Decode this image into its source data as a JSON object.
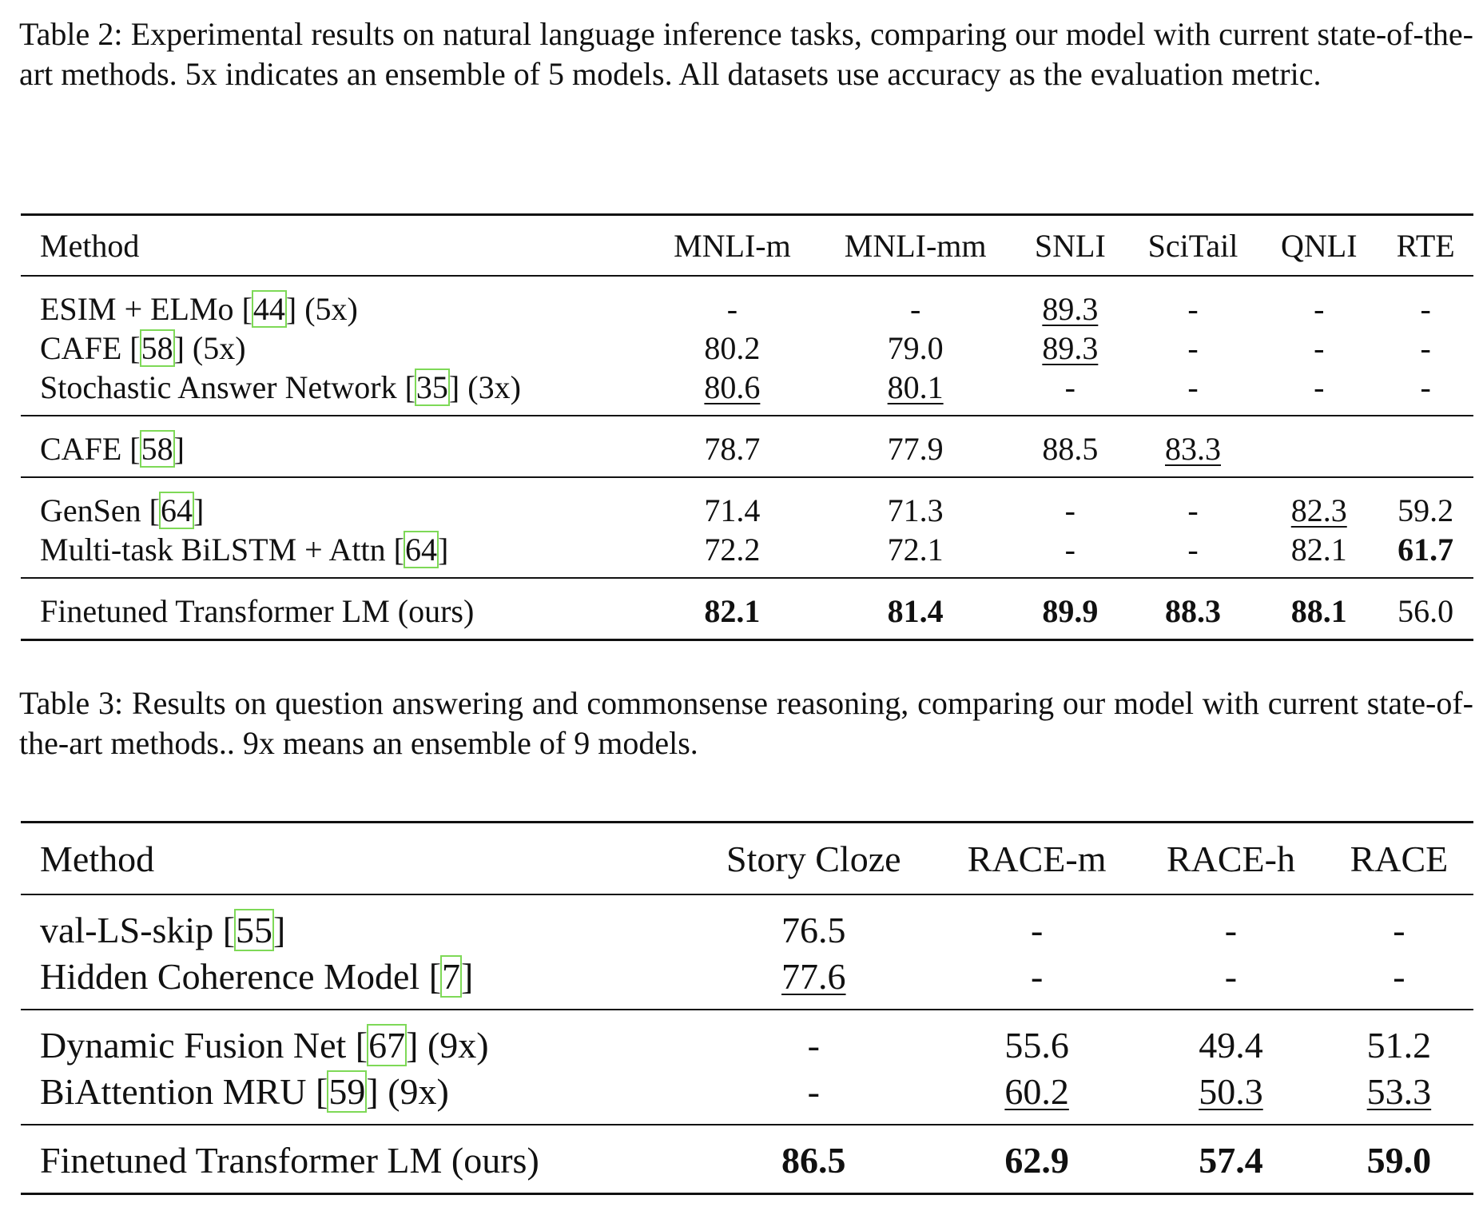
{
  "table2": {
    "caption": "Table 2: Experimental results on natural language inference tasks, comparing our model with current state-of-the-art methods. 5x indicates an ensemble of 5 models. All datasets use accuracy as the evaluation metric.",
    "headers": [
      "Method",
      "MNLI-m",
      "MNLI-mm",
      "SNLI",
      "SciTail",
      "QNLI",
      "RTE"
    ],
    "groups": [
      [
        {
          "name": "ESIM + ELMo",
          "cite": "44",
          "suffix": "(5x)",
          "cells": [
            {
              "v": "-"
            },
            {
              "v": "-"
            },
            {
              "v": "89.3",
              "u": true
            },
            {
              "v": "-"
            },
            {
              "v": "-"
            },
            {
              "v": "-"
            }
          ]
        },
        {
          "name": "CAFE",
          "cite": "58",
          "suffix": "(5x)",
          "cells": [
            {
              "v": "80.2"
            },
            {
              "v": "79.0"
            },
            {
              "v": "89.3",
              "u": true
            },
            {
              "v": "-"
            },
            {
              "v": "-"
            },
            {
              "v": "-"
            }
          ]
        },
        {
          "name": "Stochastic Answer Network",
          "cite": "35",
          "suffix": "(3x)",
          "cells": [
            {
              "v": "80.6",
              "u": true
            },
            {
              "v": "80.1",
              "u": true
            },
            {
              "v": "-"
            },
            {
              "v": "-"
            },
            {
              "v": "-"
            },
            {
              "v": "-"
            }
          ]
        }
      ],
      [
        {
          "name": "CAFE",
          "cite": "58",
          "suffix": "",
          "cells": [
            {
              "v": "78.7"
            },
            {
              "v": "77.9"
            },
            {
              "v": "88.5"
            },
            {
              "v": "83.3",
              "u": true
            },
            {
              "v": ""
            },
            {
              "v": ""
            }
          ]
        }
      ],
      [
        {
          "name": "GenSen",
          "cite": "64",
          "suffix": "",
          "cells": [
            {
              "v": "71.4"
            },
            {
              "v": "71.3"
            },
            {
              "v": "-"
            },
            {
              "v": "-"
            },
            {
              "v": "82.3",
              "u": true
            },
            {
              "v": "59.2"
            }
          ]
        },
        {
          "name": "Multi-task BiLSTM + Attn",
          "cite": "64",
          "suffix": "",
          "cells": [
            {
              "v": "72.2"
            },
            {
              "v": "72.1"
            },
            {
              "v": "-"
            },
            {
              "v": "-"
            },
            {
              "v": "82.1"
            },
            {
              "v": "61.7",
              "b": true
            }
          ]
        }
      ],
      [
        {
          "name": "Finetuned Transformer LM (ours)",
          "cite": "",
          "suffix": "",
          "cells": [
            {
              "v": "82.1",
              "b": true
            },
            {
              "v": "81.4",
              "b": true
            },
            {
              "v": "89.9",
              "b": true
            },
            {
              "v": "88.3",
              "b": true
            },
            {
              "v": "88.1",
              "b": true
            },
            {
              "v": "56.0"
            }
          ]
        }
      ]
    ]
  },
  "table3": {
    "caption": "Table 3: Results on question answering and commonsense reasoning, comparing our model with current state-of-the-art methods.. 9x means an ensemble of 9 models.",
    "headers": [
      "Method",
      "Story Cloze",
      "RACE-m",
      "RACE-h",
      "RACE"
    ],
    "groups": [
      [
        {
          "name": "val-LS-skip",
          "cite": "55",
          "suffix": "",
          "cells": [
            {
              "v": "76.5"
            },
            {
              "v": "-"
            },
            {
              "v": "-"
            },
            {
              "v": "-"
            }
          ]
        },
        {
          "name": "Hidden Coherence Model",
          "cite": "7",
          "suffix": "",
          "cells": [
            {
              "v": "77.6",
              "u": true
            },
            {
              "v": "-"
            },
            {
              "v": "-"
            },
            {
              "v": "-"
            }
          ]
        }
      ],
      [
        {
          "name": "Dynamic Fusion Net",
          "cite": "67",
          "suffix": "(9x)",
          "cells": [
            {
              "v": "-"
            },
            {
              "v": "55.6"
            },
            {
              "v": "49.4"
            },
            {
              "v": "51.2"
            }
          ]
        },
        {
          "name": "BiAttention MRU",
          "cite": "59",
          "suffix": "(9x)",
          "cells": [
            {
              "v": "-"
            },
            {
              "v": "60.2",
              "u": true
            },
            {
              "v": "50.3",
              "u": true
            },
            {
              "v": "53.3",
              "u": true
            }
          ]
        }
      ],
      [
        {
          "name": "Finetuned Transformer LM (ours)",
          "cite": "",
          "suffix": "",
          "cells": [
            {
              "v": "86.5",
              "b": true
            },
            {
              "v": "62.9",
              "b": true
            },
            {
              "v": "57.4",
              "b": true
            },
            {
              "v": "59.0",
              "b": true
            }
          ]
        }
      ]
    ]
  },
  "colors": {
    "text": "#111111",
    "citation_box": "#7ed957",
    "background": "#ffffff"
  }
}
